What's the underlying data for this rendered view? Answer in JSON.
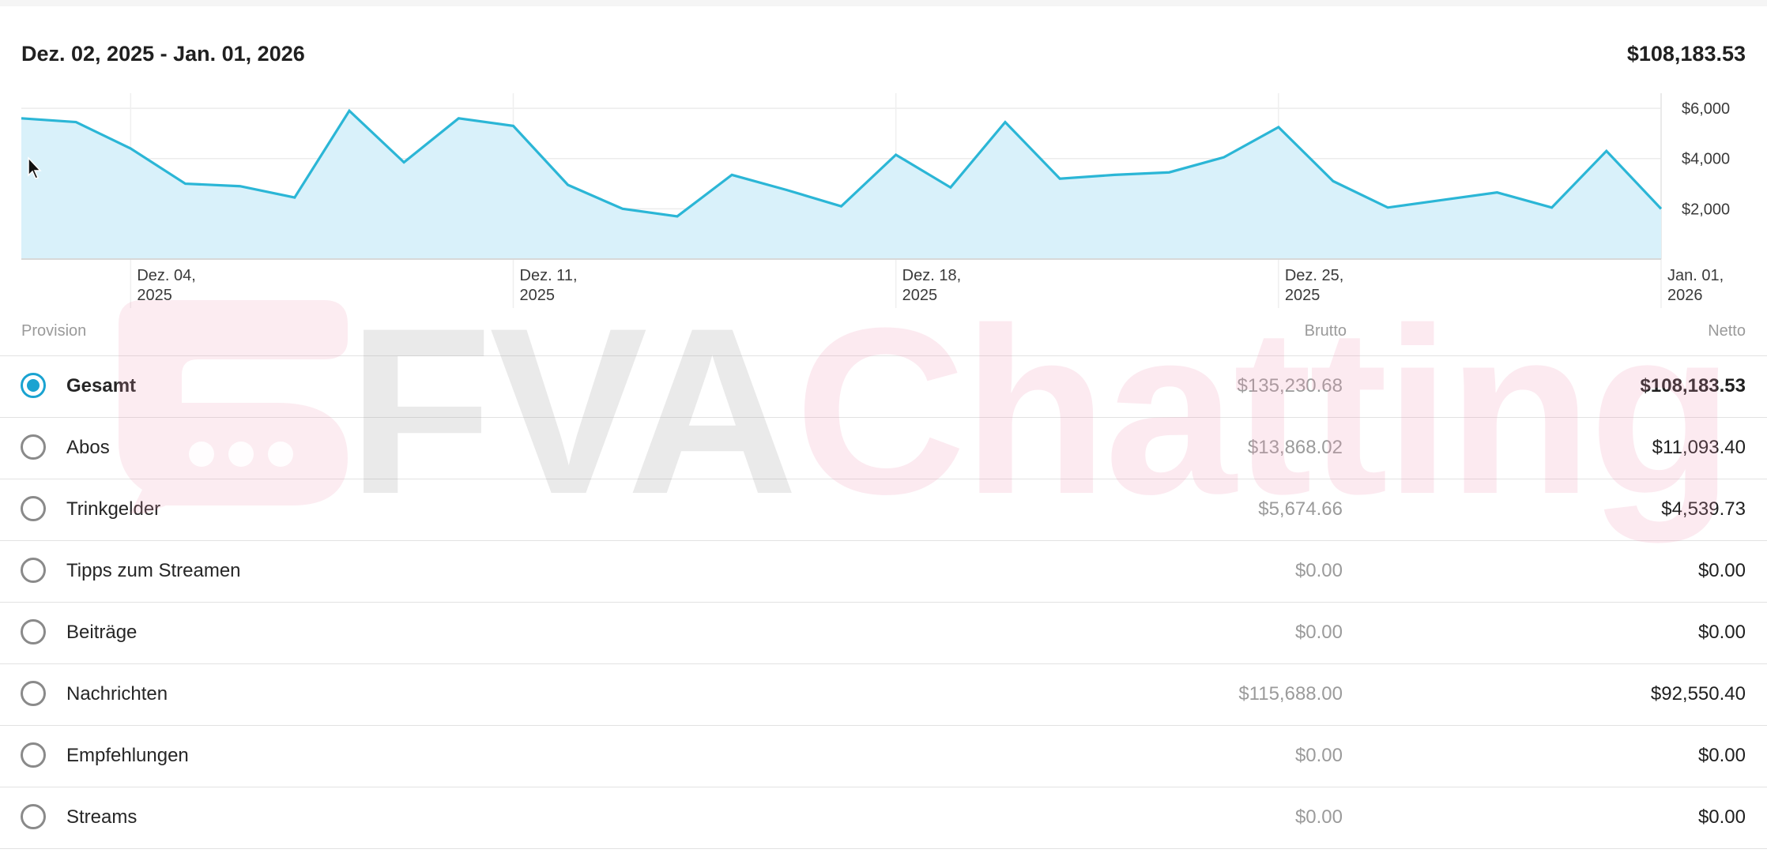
{
  "header": {
    "date_range": "Dez. 02, 2025 - Jan. 01, 2026",
    "total": "$108,183.53"
  },
  "colors": {
    "line": "#2bb6d6",
    "area": "#d9f1fa",
    "accent": "#1aa3d1"
  },
  "chart_data": {
    "type": "area",
    "x": [
      "2025-12-02",
      "2025-12-03",
      "2025-12-04",
      "2025-12-05",
      "2025-12-06",
      "2025-12-07",
      "2025-12-08",
      "2025-12-09",
      "2025-12-10",
      "2025-12-11",
      "2025-12-12",
      "2025-12-13",
      "2025-12-14",
      "2025-12-15",
      "2025-12-16",
      "2025-12-17",
      "2025-12-18",
      "2025-12-19",
      "2025-12-20",
      "2025-12-21",
      "2025-12-22",
      "2025-12-23",
      "2025-12-24",
      "2025-12-25",
      "2025-12-26",
      "2025-12-27",
      "2025-12-28",
      "2025-12-29",
      "2025-12-30",
      "2025-12-31",
      "2026-01-01"
    ],
    "values": [
      5600,
      5450,
      4400,
      3000,
      2900,
      2450,
      5900,
      3850,
      5600,
      5300,
      2950,
      2000,
      1700,
      3350,
      2750,
      2100,
      4150,
      2850,
      5450,
      3200,
      3350,
      3450,
      4050,
      5250,
      3100,
      2050,
      2350,
      2650,
      2050,
      4300,
      2000
    ],
    "ylim": [
      0,
      6000
    ],
    "y_ticks": [
      "$6,000",
      "$4,000",
      "$2,000"
    ],
    "y_tick_values": [
      6000,
      4000,
      2000
    ],
    "x_ticks": [
      {
        "date": "2025-12-04",
        "line1": "Dez. 04,",
        "line2": "2025"
      },
      {
        "date": "2025-12-11",
        "line1": "Dez. 11,",
        "line2": "2025"
      },
      {
        "date": "2025-12-18",
        "line1": "Dez. 18,",
        "line2": "2025"
      },
      {
        "date": "2025-12-25",
        "line1": "Dez. 25,",
        "line2": "2025"
      },
      {
        "date": "2026-01-01",
        "line1": "Jan. 01,",
        "line2": "2026"
      }
    ],
    "grid": true
  },
  "table": {
    "headers": {
      "category": "Provision",
      "gross": "Brutto",
      "net": "Netto"
    },
    "rows": [
      {
        "label": "Gesamt",
        "gross": "$135,230.68",
        "net": "$108,183.53",
        "selected": true
      },
      {
        "label": "Abos",
        "gross": "$13,868.02",
        "net": "$11,093.40",
        "selected": false
      },
      {
        "label": "Trinkgelder",
        "gross": "$5,674.66",
        "net": "$4,539.73",
        "selected": false
      },
      {
        "label": "Tipps zum Streamen",
        "gross": "$0.00",
        "net": "$0.00",
        "selected": false
      },
      {
        "label": "Beiträge",
        "gross": "$0.00",
        "net": "$0.00",
        "selected": false
      },
      {
        "label": "Nachrichten",
        "gross": "$115,688.00",
        "net": "$92,550.40",
        "selected": false
      },
      {
        "label": "Empfehlungen",
        "gross": "$0.00",
        "net": "$0.00",
        "selected": false
      },
      {
        "label": "Streams",
        "gross": "$0.00",
        "net": "$0.00",
        "selected": false
      }
    ]
  },
  "watermark": {
    "part1": "FVA",
    "part2": "Chatting"
  }
}
